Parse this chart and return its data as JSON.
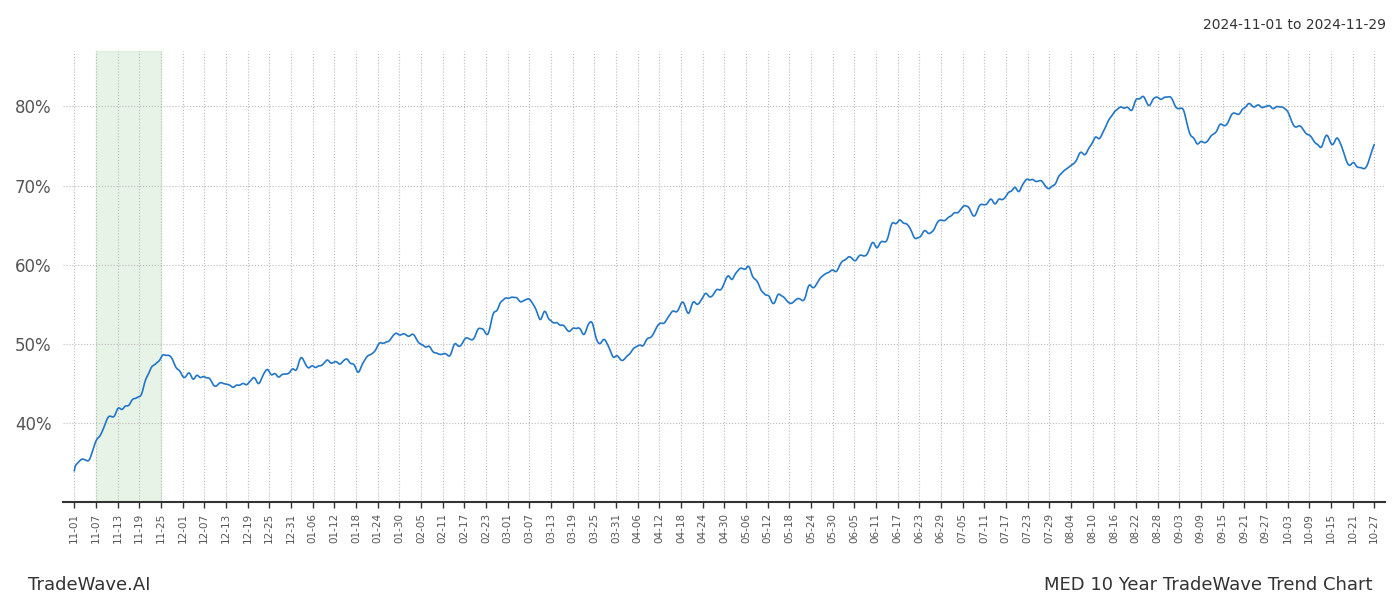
{
  "title_right": "2024-11-01 to 2024-11-29",
  "label_left": "TradeWave.AI",
  "label_right": "MED 10 Year TradeWave Trend Chart",
  "line_color": "#2176c7",
  "line_width": 1.2,
  "highlight_color": "#c8e6c9",
  "highlight_alpha": 0.45,
  "background_color": "#ffffff",
  "grid_color": "#bbbbbb",
  "ylim": [
    30,
    87
  ],
  "yticks": [
    40,
    50,
    60,
    70,
    80
  ],
  "x_labels": [
    "11-01",
    "11-07",
    "11-13",
    "11-19",
    "11-25",
    "12-01",
    "12-07",
    "12-13",
    "12-19",
    "12-25",
    "12-31",
    "01-06",
    "01-12",
    "01-18",
    "01-24",
    "01-30",
    "02-05",
    "02-11",
    "02-17",
    "02-23",
    "03-01",
    "03-07",
    "03-13",
    "03-19",
    "03-25",
    "03-31",
    "04-06",
    "04-12",
    "04-18",
    "04-24",
    "04-30",
    "05-06",
    "05-12",
    "05-18",
    "05-24",
    "05-30",
    "06-05",
    "06-11",
    "06-17",
    "06-23",
    "06-29",
    "07-05",
    "07-11",
    "07-17",
    "07-23",
    "07-29",
    "08-04",
    "08-10",
    "08-16",
    "08-22",
    "08-28",
    "09-03",
    "09-09",
    "09-15",
    "09-21",
    "09-27",
    "10-03",
    "10-09",
    "10-15",
    "10-21",
    "10-27"
  ],
  "highlight_x_start_label": "11-07",
  "highlight_x_end_label": "11-25",
  "seed": 42
}
